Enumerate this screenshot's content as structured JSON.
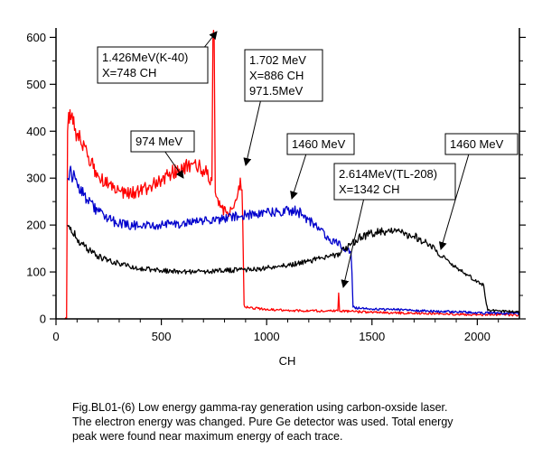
{
  "chart_data": {
    "type": "line",
    "xlabel": "CH",
    "ylabel": "",
    "xlim": [
      0,
      2200
    ],
    "ylim": [
      0,
      620
    ],
    "x_ticks": [
      0,
      500,
      1000,
      1500,
      2000
    ],
    "y_ticks": [
      0,
      100,
      200,
      300,
      400,
      500,
      600
    ],
    "grid": false,
    "series": [
      {
        "color": "#ff0000",
        "points": [
          [
            40,
            0
          ],
          [
            50,
            0
          ],
          [
            55,
            400
          ],
          [
            60,
            440
          ],
          [
            70,
            425
          ],
          [
            80,
            415
          ],
          [
            100,
            395
          ],
          [
            150,
            345
          ],
          [
            200,
            305
          ],
          [
            250,
            285
          ],
          [
            300,
            272
          ],
          [
            350,
            268
          ],
          [
            400,
            272
          ],
          [
            450,
            283
          ],
          [
            500,
            298
          ],
          [
            550,
            312
          ],
          [
            600,
            320
          ],
          [
            650,
            330
          ],
          [
            700,
            318
          ],
          [
            740,
            295
          ],
          [
            745,
            595
          ],
          [
            748,
            615
          ],
          [
            751,
            595
          ],
          [
            756,
            270
          ],
          [
            780,
            238
          ],
          [
            810,
            225
          ],
          [
            840,
            236
          ],
          [
            860,
            258
          ],
          [
            875,
            300
          ],
          [
            883,
            275
          ],
          [
            887,
            200
          ],
          [
            893,
            30
          ],
          [
            900,
            25
          ],
          [
            1000,
            20
          ],
          [
            1100,
            18
          ],
          [
            1200,
            17
          ],
          [
            1300,
            17
          ],
          [
            1338,
            17
          ],
          [
            1342,
            55
          ],
          [
            1346,
            17
          ],
          [
            1400,
            16
          ],
          [
            1500,
            14
          ],
          [
            1600,
            13
          ],
          [
            1700,
            12
          ],
          [
            1800,
            11
          ],
          [
            1900,
            10
          ],
          [
            2000,
            9
          ],
          [
            2100,
            9
          ],
          [
            2200,
            8
          ]
        ]
      },
      {
        "color": "#0000cc",
        "points": [
          [
            55,
            300
          ],
          [
            65,
            315
          ],
          [
            100,
            290
          ],
          [
            150,
            252
          ],
          [
            200,
            228
          ],
          [
            250,
            212
          ],
          [
            300,
            203
          ],
          [
            400,
            198
          ],
          [
            500,
            200
          ],
          [
            600,
            204
          ],
          [
            700,
            208
          ],
          [
            800,
            213
          ],
          [
            900,
            222
          ],
          [
            1000,
            226
          ],
          [
            1050,
            228
          ],
          [
            1100,
            232
          ],
          [
            1150,
            228
          ],
          [
            1200,
            212
          ],
          [
            1250,
            190
          ],
          [
            1300,
            170
          ],
          [
            1350,
            158
          ],
          [
            1400,
            142
          ],
          [
            1405,
            100
          ],
          [
            1410,
            25
          ],
          [
            1450,
            22
          ],
          [
            1500,
            21
          ],
          [
            1600,
            20
          ],
          [
            1700,
            18
          ],
          [
            1800,
            16
          ],
          [
            1900,
            15
          ],
          [
            2000,
            13
          ],
          [
            2100,
            12
          ],
          [
            2200,
            12
          ]
        ]
      },
      {
        "color": "#000000",
        "points": [
          [
            55,
            200
          ],
          [
            70,
            195
          ],
          [
            100,
            170
          ],
          [
            150,
            148
          ],
          [
            200,
            133
          ],
          [
            250,
            124
          ],
          [
            300,
            118
          ],
          [
            400,
            108
          ],
          [
            500,
            103
          ],
          [
            600,
            100
          ],
          [
            700,
            101
          ],
          [
            800,
            103
          ],
          [
            900,
            105
          ],
          [
            1000,
            108
          ],
          [
            1100,
            114
          ],
          [
            1200,
            123
          ],
          [
            1300,
            133
          ],
          [
            1350,
            140
          ],
          [
            1400,
            160
          ],
          [
            1450,
            175
          ],
          [
            1500,
            182
          ],
          [
            1550,
            185
          ],
          [
            1600,
            185
          ],
          [
            1650,
            182
          ],
          [
            1700,
            176
          ],
          [
            1750,
            163
          ],
          [
            1800,
            148
          ],
          [
            1850,
            128
          ],
          [
            1900,
            110
          ],
          [
            1950,
            95
          ],
          [
            2000,
            80
          ],
          [
            2030,
            72
          ],
          [
            2040,
            40
          ],
          [
            2050,
            18
          ],
          [
            2100,
            17
          ],
          [
            2200,
            15
          ]
        ]
      }
    ],
    "annotations": [
      {
        "lines": [
          "1.426MeV(K-40)",
          "X=748 CH"
        ]
      },
      {
        "lines": [
          "1.702  MeV",
          "X=886 CH",
          "971.5MeV"
        ]
      },
      {
        "lines": [
          "974 MeV"
        ]
      },
      {
        "lines": [
          "1460 MeV"
        ]
      },
      {
        "lines": [
          "1460 MeV"
        ]
      },
      {
        "lines": [
          "2.614MeV(TL-208)",
          "X=1342 CH"
        ]
      }
    ]
  },
  "caption": {
    "line1": "Fig.BL01-(6)  Low energy gamma-ray generation using carbon-oxside laser.",
    "line2": "The electron energy was changed. Pure Ge detector was used. Total energy",
    "line3": "peak were found near maximum energy of each trace."
  }
}
